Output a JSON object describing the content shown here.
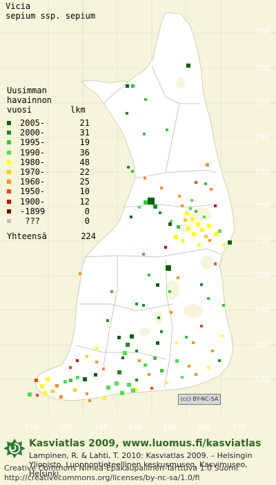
{
  "title": {
    "line1": "Vicia",
    "line2": "sepium ssp. sepium"
  },
  "legend": {
    "header": [
      "Uusimman",
      "havainnon",
      "vuosi"
    ],
    "count_header": "lkm",
    "rows": [
      {
        "label": "2005-",
        "count": "21",
        "color": "#006400"
      },
      {
        "label": "2000-",
        "count": "31",
        "color": "#1e8c1e"
      },
      {
        "label": "1995-",
        "count": "19",
        "color": "#32c832"
      },
      {
        "label": "1990-",
        "count": "36",
        "color": "#4ee04e"
      },
      {
        "label": "1980-",
        "count": "48",
        "color": "#ffff00"
      },
      {
        "label": "1970-",
        "count": "22",
        "color": "#ffcc00"
      },
      {
        "label": "1960-",
        "count": "25",
        "color": "#ff8c1a"
      },
      {
        "label": "1950-",
        "count": "10",
        "color": "#ff4000"
      },
      {
        "label": "1900-",
        "count": "12",
        "color": "#cc0000"
      },
      {
        "label": "-1899",
        "count": "0",
        "color": "#800000"
      },
      {
        "label": " ???",
        "count": "0",
        "color": "#c0c0c0"
      }
    ],
    "total_label": "Yhteensä",
    "total_count": "224"
  },
  "axes": {
    "y_ticks": [
      "770",
      "760",
      "750",
      "740",
      "730",
      "720",
      "710",
      "700",
      "690",
      "680",
      "670"
    ],
    "x_ticks": [
      "310",
      "320",
      "330",
      "340",
      "350",
      "360",
      "370"
    ]
  },
  "license_badge": "(cc) BY-NC-SA",
  "footer": {
    "site": "Kasviatlas 2009, www.luomus.fi/kasviatlas",
    "citation": "Lampinen, R. & Lahti, T. 2010: Kasviatlas 2009. – Helsingin Yliopisto, Luonnontieteellinen keskusmuseo, Kasvimuseo, Helsinki.",
    "license_line1": "Creative Commons Nimeä-Epäkaupallinen-Tarttuva 1.0 Suomi",
    "license_line2": "http://creativecommons.org/licenses/by-nc-sa/1.0/fi"
  },
  "colors": {
    "background": "#f5f5dc",
    "land": "#ffffff",
    "water": "#f5f5dc",
    "footer_green": "#2e6b1f"
  }
}
